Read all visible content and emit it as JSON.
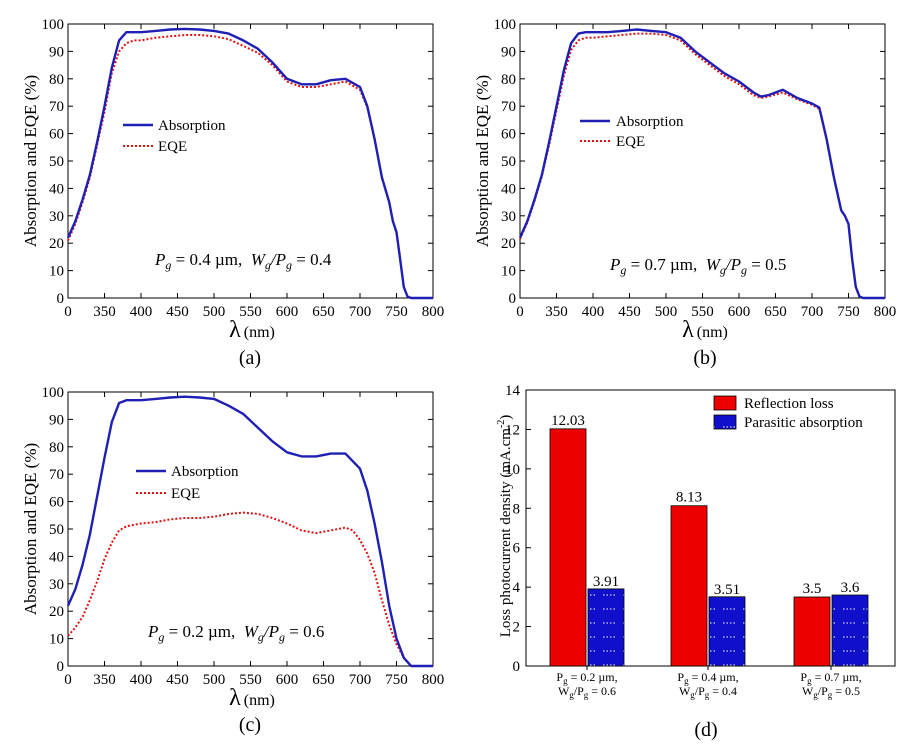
{
  "colors": {
    "absorption": "#1f1fb4",
    "eqe": "#e01010",
    "reflection_bar": "#ee0000",
    "parasitic_bar": "#1010cc",
    "axis": "#000000"
  },
  "line_axes": {
    "xlabel_symbol": "λ",
    "xlabel_unit": "(nm)",
    "ylabel": "Absorption and EQE (%)",
    "xlim": [
      300,
      800
    ],
    "ylim": [
      0,
      100
    ],
    "xticks": [
      "0",
      "350",
      "400",
      "450",
      "500",
      "550",
      "600",
      "650",
      "700",
      "750",
      "800"
    ],
    "yticks": [
      "0",
      "10",
      "20",
      "30",
      "40",
      "50",
      "60",
      "70",
      "80",
      "90",
      "100"
    ],
    "legend": [
      "Absorption",
      "EQE"
    ]
  },
  "panels": {
    "a": {
      "label": "(a)",
      "annotation": {
        "p": "P",
        "g1": "g",
        "pval": " = 0.4 µm,  ",
        "w": "W",
        "g2": "g",
        "slash": "/P",
        "g3": "g",
        "wval": " = 0.4"
      }
    },
    "b": {
      "label": "(b)",
      "annotation": {
        "p": "P",
        "g1": "g",
        "pval": " = 0.7 µm,  ",
        "w": "W",
        "g2": "g",
        "slash": "/P",
        "g3": "g",
        "wval": " = 0.5"
      }
    },
    "c": {
      "label": "(c)",
      "annotation": {
        "p": "P",
        "g1": "g",
        "pval": " = 0.2 µm,  ",
        "w": "W",
        "g2": "g",
        "slash": "/P",
        "g3": "g",
        "wval": " = 0.6"
      }
    },
    "d": {
      "label": "(d)",
      "ylabel": "Loss photocurrent density (mA.cm",
      "ylabel_sup": "-2",
      "ylabel_close": ")",
      "yticks": [
        "0",
        "2",
        "4",
        "6",
        "8",
        "10",
        "12",
        "14"
      ],
      "legend": [
        "Reflection loss",
        "Parasitic absorption"
      ],
      "categories": [
        {
          "l1": "P",
          "l1s": "g",
          "l1r": " = 0.2 µm,",
          "l2": "W",
          "l2s": "g",
          "l2m": "/P",
          "l2s2": "g",
          "l2r": " = 0.6"
        },
        {
          "l1": "P",
          "l1s": "g",
          "l1r": " = 0.4 µm,",
          "l2": "W",
          "l2s": "g",
          "l2m": "/P",
          "l2s2": "g",
          "l2r": " = 0.4"
        },
        {
          "l1": "P",
          "l1s": "g",
          "l1r": " = 0.7 µm,",
          "l2": "W",
          "l2s": "g",
          "l2m": "/P",
          "l2s2": "g",
          "l2r": " = 0.5"
        }
      ],
      "value_labels": {
        "reflection": [
          "12.03",
          "8.13",
          "3.5"
        ],
        "parasitic": [
          "3.91",
          "3.51",
          "3.6"
        ]
      }
    }
  },
  "chart_data": [
    {
      "type": "line",
      "panel": "(a)",
      "xlim": [
        300,
        800
      ],
      "ylim": [
        0,
        100
      ],
      "series": [
        {
          "name": "Absorption",
          "x": [
            300,
            310,
            320,
            330,
            340,
            350,
            360,
            370,
            380,
            390,
            400,
            420,
            440,
            460,
            480,
            500,
            520,
            540,
            560,
            580,
            600,
            620,
            640,
            660,
            680,
            700,
            710,
            720,
            730,
            740,
            745,
            750,
            755,
            760,
            765,
            770,
            780,
            790,
            800
          ],
          "y": [
            22,
            28,
            36,
            45,
            57,
            70,
            84,
            94,
            97,
            97,
            97,
            97.5,
            98,
            98.2,
            98,
            97.5,
            96.5,
            94,
            91,
            86,
            80,
            78,
            78,
            79.5,
            80,
            77,
            70,
            58,
            44,
            35,
            28,
            24,
            14,
            4,
            0.5,
            0,
            0,
            0,
            0
          ]
        },
        {
          "name": "EQE",
          "x": [
            300,
            310,
            320,
            330,
            340,
            350,
            360,
            370,
            380,
            390,
            400,
            420,
            440,
            460,
            480,
            500,
            520,
            540,
            560,
            580,
            600,
            620,
            640,
            660,
            680,
            700,
            710,
            720,
            730,
            740,
            745,
            750,
            755,
            760,
            765,
            770,
            780,
            790,
            800
          ],
          "y": [
            21,
            27,
            35,
            44,
            56,
            68,
            82,
            90,
            93,
            94,
            94,
            95,
            95.5,
            96,
            96,
            95.5,
            94.5,
            92,
            89.5,
            85,
            79,
            77,
            77,
            78,
            79,
            76,
            69.5,
            58,
            44,
            35,
            28,
            24,
            14,
            4,
            0.5,
            0,
            0,
            0,
            0
          ]
        }
      ]
    },
    {
      "type": "line",
      "panel": "(b)",
      "xlim": [
        300,
        800
      ],
      "ylim": [
        0,
        100
      ],
      "series": [
        {
          "name": "Absorption",
          "x": [
            300,
            310,
            320,
            330,
            340,
            350,
            360,
            370,
            380,
            390,
            400,
            420,
            440,
            460,
            480,
            500,
            520,
            540,
            560,
            580,
            600,
            620,
            630,
            640,
            660,
            680,
            700,
            710,
            720,
            730,
            740,
            745,
            750,
            755,
            760,
            765,
            770,
            780,
            790,
            800
          ],
          "y": [
            22,
            28,
            36,
            45,
            57,
            70,
            83,
            93,
            96.5,
            97,
            97,
            97,
            97.5,
            98,
            97.5,
            97,
            95,
            90,
            86,
            82,
            79,
            75,
            73.5,
            74,
            76,
            73,
            71,
            69.5,
            58,
            44,
            32,
            30,
            27,
            14,
            4,
            0.5,
            0,
            0,
            0,
            0
          ]
        },
        {
          "name": "EQE",
          "x": [
            300,
            310,
            320,
            330,
            340,
            350,
            360,
            370,
            380,
            390,
            400,
            420,
            440,
            460,
            480,
            500,
            520,
            540,
            560,
            580,
            600,
            620,
            630,
            640,
            660,
            680,
            700,
            710,
            720,
            730,
            740,
            745,
            750,
            755,
            760,
            765,
            770,
            780,
            790,
            800
          ],
          "y": [
            21.5,
            27.5,
            35.5,
            44.5,
            56,
            68.5,
            81,
            90.5,
            94,
            95,
            95,
            95.5,
            96,
            96.5,
            96.5,
            96,
            94,
            89,
            85,
            81,
            78,
            74,
            73,
            73.5,
            75,
            72.5,
            70.5,
            69,
            58,
            44,
            32,
            30,
            27,
            14,
            4,
            0.5,
            0,
            0,
            0,
            0
          ]
        }
      ]
    },
    {
      "type": "line",
      "panel": "(c)",
      "xlim": [
        300,
        800
      ],
      "ylim": [
        0,
        100
      ],
      "series": [
        {
          "name": "Absorption",
          "x": [
            300,
            310,
            320,
            330,
            340,
            350,
            360,
            370,
            380,
            390,
            400,
            420,
            440,
            460,
            480,
            500,
            520,
            540,
            560,
            580,
            600,
            620,
            640,
            660,
            680,
            700,
            710,
            720,
            730,
            740,
            750,
            760,
            770,
            780,
            790,
            800
          ],
          "y": [
            22,
            28,
            37,
            48,
            62,
            76,
            89,
            96,
            97,
            97,
            97,
            97.5,
            98,
            98.3,
            98,
            97.5,
            95,
            92,
            87,
            82,
            78,
            76.5,
            76.5,
            77.5,
            77.5,
            72,
            64,
            52,
            38,
            22,
            10,
            3,
            0,
            0,
            0,
            0
          ]
        },
        {
          "name": "EQE",
          "x": [
            300,
            310,
            320,
            330,
            340,
            350,
            360,
            370,
            380,
            390,
            400,
            420,
            440,
            460,
            480,
            500,
            520,
            540,
            560,
            580,
            600,
            620,
            640,
            660,
            680,
            690,
            700,
            710,
            720,
            730,
            740,
            750,
            760,
            770,
            780,
            790,
            800
          ],
          "y": [
            11,
            14,
            18,
            24,
            31,
            39,
            45,
            49.5,
            51,
            51.5,
            52,
            52.5,
            53.5,
            54,
            54,
            54.5,
            55.5,
            56,
            55.5,
            54,
            52,
            49.5,
            48.5,
            49.5,
            50.5,
            49.5,
            46,
            41,
            34,
            24,
            15,
            8,
            3,
            0,
            0,
            0,
            0
          ]
        }
      ]
    },
    {
      "type": "bar",
      "panel": "(d)",
      "title": "",
      "categories": [
        "Pg = 0.2 µm, Wg/Pg = 0.6",
        "Pg = 0.4 µm, Wg/Pg = 0.4",
        "Pg = 0.7 µm, Wg/Pg = 0.5"
      ],
      "ylabel": "Loss photocurrent density (mA.cm-2)",
      "ylim": [
        0,
        14
      ],
      "series": [
        {
          "name": "Reflection loss",
          "values": [
            12.03,
            8.13,
            3.5
          ]
        },
        {
          "name": "Parasitic absorption",
          "values": [
            3.91,
            3.51,
            3.6
          ]
        }
      ]
    }
  ]
}
